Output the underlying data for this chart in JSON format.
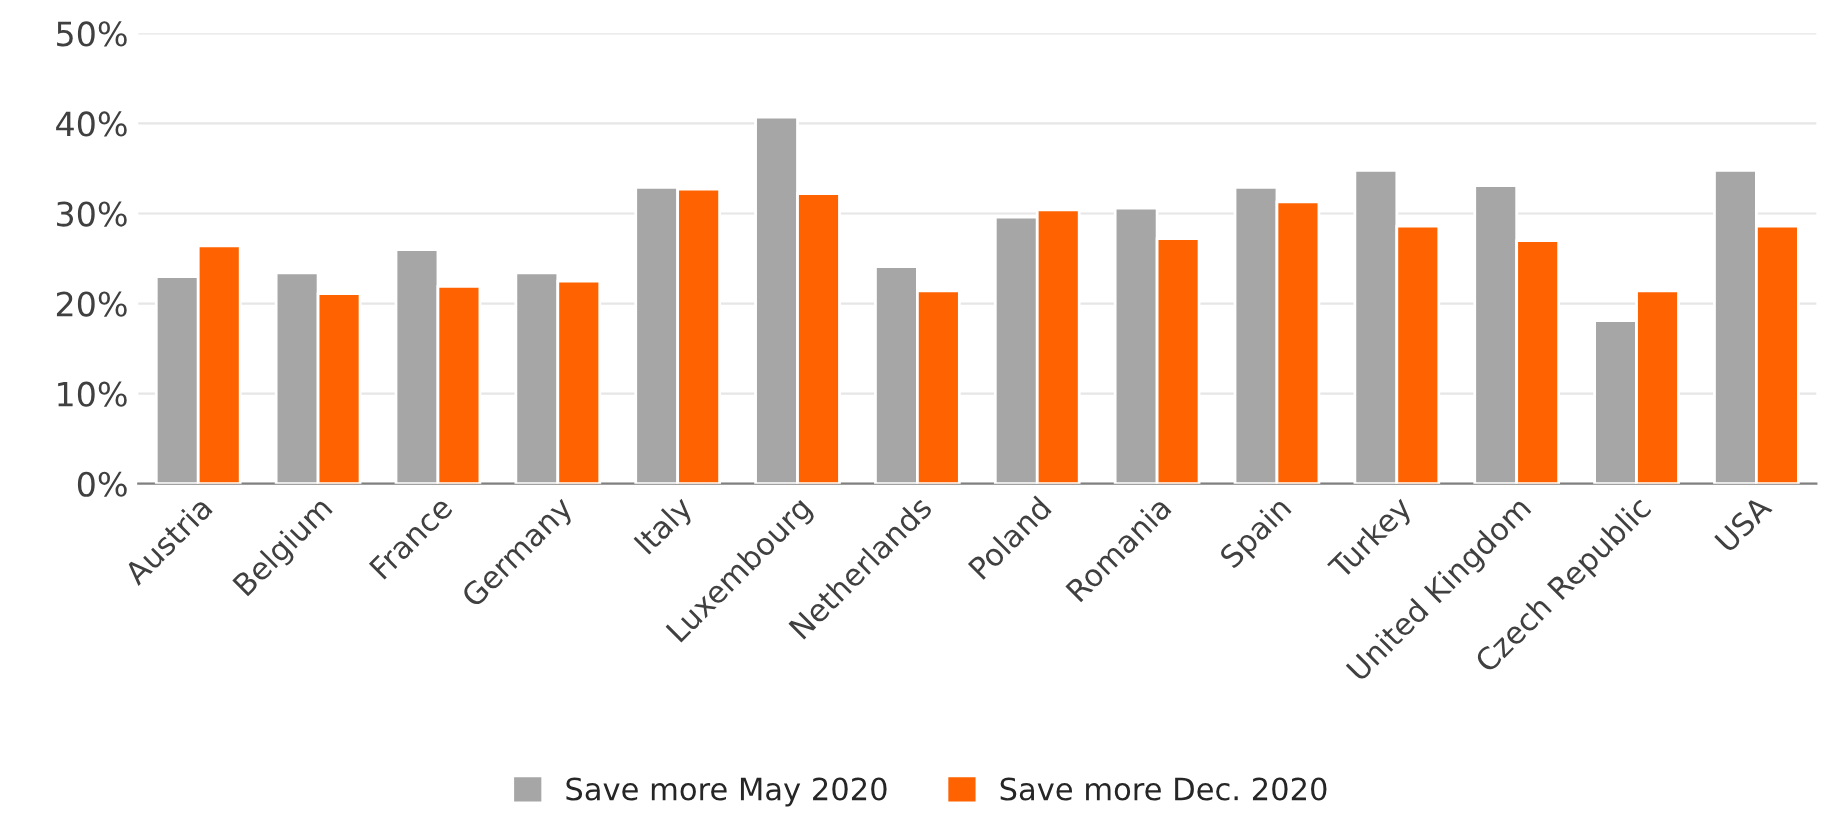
{
  "chart_data": {
    "type": "bar",
    "categories": [
      "Austria",
      "Belgium",
      "France",
      "Germany",
      "Italy",
      "Luxembourg",
      "Netherlands",
      "Poland",
      "Romania",
      "Spain",
      "Turkey",
      "United Kingdom",
      "Czech Republic",
      "USA"
    ],
    "series": [
      {
        "name": "Save more May 2020",
        "color": "#a6a6a6",
        "values": [
          23.0,
          23.4,
          26.0,
          23.4,
          32.9,
          40.7,
          24.1,
          29.6,
          30.6,
          32.9,
          34.8,
          33.1,
          18.1,
          34.8
        ]
      },
      {
        "name": "Save more Dec. 2020",
        "color": "#ff6200",
        "values": [
          26.4,
          21.1,
          21.9,
          22.5,
          32.7,
          32.2,
          21.4,
          30.4,
          27.2,
          31.3,
          28.6,
          27.0,
          21.4,
          28.6
        ]
      }
    ],
    "ylim": [
      0,
      50
    ],
    "yticks": [
      {
        "value": 0,
        "label": "0%"
      },
      {
        "value": 10,
        "label": "10%"
      },
      {
        "value": 20,
        "label": "20%"
      },
      {
        "value": 30,
        "label": "30%"
      },
      {
        "value": 40,
        "label": "40%"
      },
      {
        "value": 50,
        "label": "50%"
      }
    ],
    "grid": "y",
    "legend": "bottom"
  }
}
